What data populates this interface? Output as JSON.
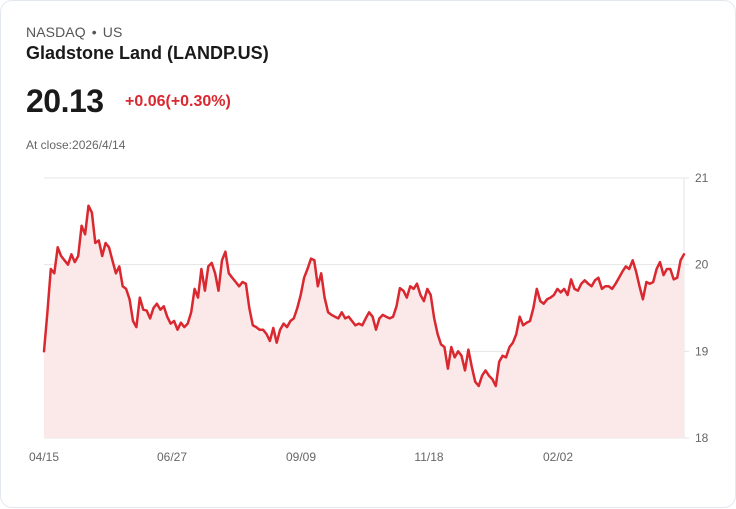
{
  "header": {
    "exchange": "NASDAQ",
    "separator": "•",
    "region": "US",
    "title": "Gladstone Land (LANDP.US)",
    "price": "20.13",
    "change": "+0.06(+0.30%)",
    "close_label": "At close:2026/4/14"
  },
  "colors": {
    "line": "#d9282f",
    "fill": "#fbe8e8",
    "grid": "#e5e5e5",
    "text": "#1a1a1a"
  },
  "chart_data": {
    "type": "area",
    "title": "Gladstone Land (LANDP.US)",
    "xlabel": "",
    "ylabel": "",
    "ylim": [
      18,
      21
    ],
    "yticks": [
      21,
      20,
      19,
      18
    ],
    "xtick_labels": [
      "04/15",
      "06/27",
      "09/09",
      "11/18",
      "02/02"
    ],
    "grid": true,
    "legend": "none",
    "series": [
      {
        "name": "LANDP.US",
        "values": [
          19.0,
          19.45,
          19.95,
          19.9,
          20.2,
          20.1,
          20.05,
          20.0,
          20.12,
          20.03,
          20.1,
          20.45,
          20.35,
          20.68,
          20.6,
          20.25,
          20.28,
          20.1,
          20.25,
          20.2,
          20.05,
          19.9,
          19.98,
          19.75,
          19.72,
          19.6,
          19.35,
          19.28,
          19.62,
          19.48,
          19.47,
          19.38,
          19.5,
          19.55,
          19.48,
          19.52,
          19.4,
          19.32,
          19.35,
          19.25,
          19.33,
          19.28,
          19.32,
          19.45,
          19.72,
          19.62,
          19.95,
          19.7,
          19.98,
          20.02,
          19.9,
          19.7,
          20.05,
          20.15,
          19.9,
          19.85,
          19.8,
          19.75,
          19.8,
          19.78,
          19.5,
          19.3,
          19.28,
          19.25,
          19.25,
          19.2,
          19.12,
          19.27,
          19.1,
          19.25,
          19.32,
          19.28,
          19.35,
          19.38,
          19.5,
          19.65,
          19.85,
          19.95,
          20.07,
          20.05,
          19.75,
          19.9,
          19.62,
          19.45,
          19.42,
          19.4,
          19.38,
          19.45,
          19.38,
          19.4,
          19.35,
          19.3,
          19.32,
          19.3,
          19.38,
          19.45,
          19.4,
          19.25,
          19.38,
          19.42,
          19.4,
          19.38,
          19.4,
          19.52,
          19.73,
          19.7,
          19.62,
          19.75,
          19.72,
          19.78,
          19.65,
          19.58,
          19.72,
          19.65,
          19.38,
          19.2,
          19.08,
          19.05,
          18.8,
          19.05,
          18.93,
          19.0,
          18.95,
          18.78,
          19.02,
          18.82,
          18.65,
          18.6,
          18.72,
          18.78,
          18.72,
          18.68,
          18.6,
          18.88,
          18.95,
          18.93,
          19.05,
          19.1,
          19.2,
          19.4,
          19.3,
          19.33,
          19.35,
          19.5,
          19.72,
          19.58,
          19.55,
          19.6,
          19.62,
          19.65,
          19.72,
          19.68,
          19.72,
          19.65,
          19.83,
          19.72,
          19.7,
          19.78,
          19.82,
          19.78,
          19.75,
          19.82,
          19.85,
          19.72,
          19.75,
          19.75,
          19.72,
          19.78,
          19.85,
          19.92,
          19.98,
          19.95,
          20.05,
          19.92,
          19.75,
          19.6,
          19.8,
          19.78,
          19.8,
          19.95,
          20.03,
          19.88,
          19.95,
          19.95,
          19.83,
          19.85,
          20.05,
          20.12
        ]
      }
    ]
  }
}
